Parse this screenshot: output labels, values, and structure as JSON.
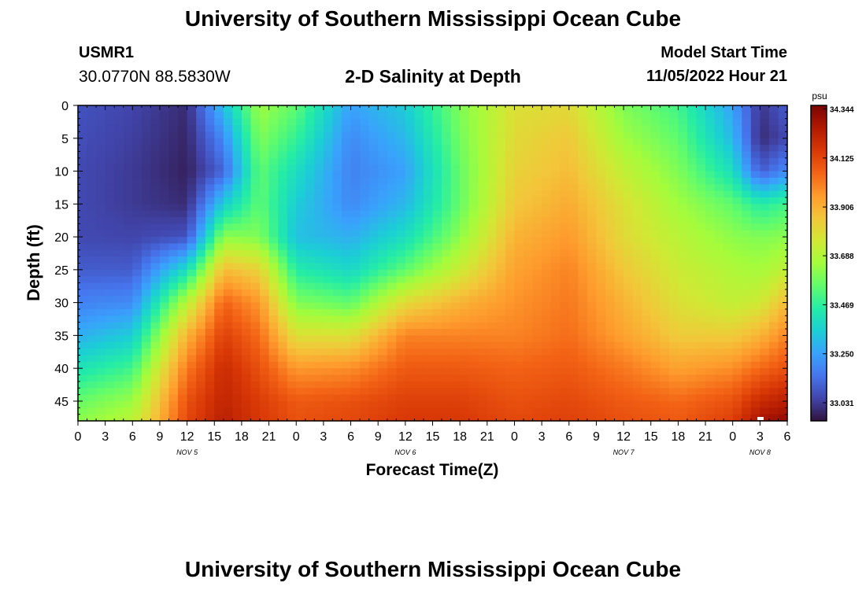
{
  "header": {
    "title": "University of Southern Mississippi Ocean Cube",
    "station_id": "USMR1",
    "coordinates": "30.0770N  88.5830W",
    "subtitle": "2-D Salinity at Depth",
    "model_start_label": "Model Start Time",
    "model_start_value": "11/05/2022 Hour 21"
  },
  "footer": {
    "title": "University of Southern Mississippi Ocean Cube"
  },
  "chart_data": {
    "type": "heatmap",
    "title": "2-D Salinity at Depth",
    "xlabel": "Forecast Time(Z)",
    "ylabel": "Depth (ft)",
    "colorbar_unit": "psu",
    "x_tick_labels": [
      "0",
      "3",
      "6",
      "9",
      "12",
      "15",
      "18",
      "21",
      "0",
      "3",
      "6",
      "9",
      "12",
      "15",
      "18",
      "21",
      "0",
      "3",
      "6",
      "9",
      "12",
      "15",
      "18",
      "21",
      "0",
      "3",
      "6"
    ],
    "date_labels": [
      {
        "label": "NOV 5",
        "tick_index": 4
      },
      {
        "label": "NOV 6",
        "tick_index": 12
      },
      {
        "label": "NOV 7",
        "tick_index": 20
      },
      {
        "label": "NOV 8",
        "tick_index": 25
      }
    ],
    "x_range_hours": [
      0,
      78
    ],
    "y_ticks": [
      0,
      5,
      10,
      15,
      20,
      25,
      30,
      35,
      40,
      45
    ],
    "y_range": [
      0,
      48
    ],
    "y_inverted": true,
    "colorbar_ticks": [
      "34.344",
      "34.125",
      "33.906",
      "33.688",
      "33.469",
      "33.250",
      "33.031"
    ],
    "value_range": [
      32.95,
      34.36
    ],
    "colormap": [
      "#30123b",
      "#4145ab",
      "#4675ed",
      "#39a2fc",
      "#1bcfd4",
      "#24eca6",
      "#61fc6c",
      "#a4fc3b",
      "#d1e834",
      "#f3c63a",
      "#fe9b2d",
      "#f36315",
      "#d93806",
      "#b11901",
      "#7a0402"
    ],
    "depth_levels": [
      0,
      5,
      10,
      15,
      20,
      25,
      30,
      35,
      40,
      45,
      48
    ],
    "times_hours": [
      0,
      6,
      12,
      16,
      20,
      24,
      30,
      36,
      42,
      48,
      54,
      60,
      66,
      72,
      75,
      78
    ],
    "salinity_grid": [
      [
        33.08,
        33.05,
        33.0,
        33.32,
        33.65,
        33.55,
        33.25,
        33.35,
        33.6,
        33.78,
        33.8,
        33.6,
        33.5,
        33.25,
        33.02,
        33.1
      ],
      [
        33.07,
        33.04,
        32.99,
        33.2,
        33.6,
        33.48,
        33.2,
        33.3,
        33.58,
        33.8,
        33.85,
        33.65,
        33.55,
        33.3,
        33.0,
        33.06
      ],
      [
        33.06,
        33.03,
        32.98,
        33.12,
        33.55,
        33.4,
        33.18,
        33.25,
        33.56,
        33.82,
        33.88,
        33.72,
        33.6,
        33.4,
        33.1,
        33.2
      ],
      [
        33.06,
        33.03,
        33.0,
        33.35,
        33.55,
        33.35,
        33.2,
        33.3,
        33.56,
        33.85,
        33.92,
        33.78,
        33.65,
        33.55,
        33.45,
        33.5
      ],
      [
        33.06,
        33.05,
        33.08,
        33.62,
        33.6,
        33.32,
        33.28,
        33.4,
        33.62,
        33.9,
        33.96,
        33.8,
        33.7,
        33.62,
        33.6,
        33.62
      ],
      [
        33.1,
        33.1,
        33.4,
        33.88,
        33.82,
        33.45,
        33.38,
        33.55,
        33.74,
        33.94,
        34.0,
        33.85,
        33.74,
        33.68,
        33.66,
        33.72
      ],
      [
        33.18,
        33.2,
        33.7,
        34.06,
        33.96,
        33.6,
        33.55,
        33.8,
        33.9,
        33.97,
        34.02,
        33.9,
        33.78,
        33.72,
        33.75,
        33.88
      ],
      [
        33.28,
        33.35,
        33.9,
        34.14,
        34.04,
        33.78,
        33.78,
        34.0,
        34.0,
        34.0,
        34.04,
        33.94,
        33.84,
        33.84,
        33.9,
        34.0
      ],
      [
        33.42,
        33.5,
        34.02,
        34.2,
        34.1,
        33.96,
        33.98,
        34.08,
        34.08,
        34.06,
        34.08,
        34.02,
        33.94,
        33.98,
        34.05,
        34.1
      ],
      [
        33.56,
        33.64,
        34.1,
        34.22,
        34.15,
        34.08,
        34.1,
        34.14,
        34.14,
        34.1,
        34.12,
        34.08,
        34.05,
        34.1,
        34.2,
        34.24
      ],
      [
        33.62,
        33.7,
        34.12,
        34.24,
        34.16,
        34.1,
        34.12,
        34.16,
        34.16,
        34.12,
        34.14,
        34.1,
        34.08,
        34.14,
        34.28,
        34.32
      ]
    ]
  }
}
